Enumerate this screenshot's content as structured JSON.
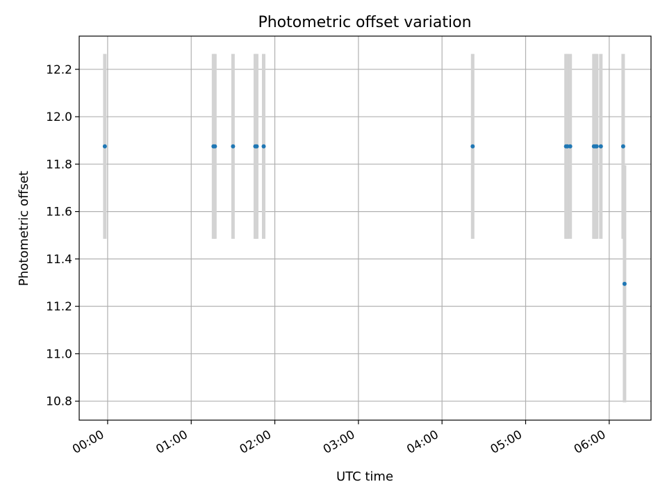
{
  "chart_data": {
    "type": "scatter",
    "title": "Photometric offset variation",
    "xlabel": "UTC time",
    "ylabel": "Photometric offset",
    "x_tick_labels": [
      "00:00",
      "01:00",
      "02:00",
      "03:00",
      "04:00",
      "05:00",
      "06:00"
    ],
    "x_ticks_hours": [
      0,
      1,
      2,
      3,
      4,
      5,
      6
    ],
    "xlim_hours": [
      -0.34,
      6.5
    ],
    "y_tick_labels": [
      "10.8",
      "11.0",
      "11.2",
      "11.4",
      "11.6",
      "11.8",
      "12.0",
      "12.2"
    ],
    "y_ticks": [
      10.8,
      11.0,
      11.2,
      11.4,
      11.6,
      11.8,
      12.0,
      12.2
    ],
    "ylim": [
      10.72,
      12.34
    ],
    "grid": true,
    "point_color": "#1f77b4",
    "errorbar_color": "#d3d3d3",
    "points": [
      {
        "time": "23:58",
        "y": 11.875,
        "err": 0.39
      },
      {
        "time": "01:16",
        "y": 11.875,
        "err": 0.39
      },
      {
        "time": "01:17",
        "y": 11.875,
        "err": 0.39
      },
      {
        "time": "01:30",
        "y": 11.875,
        "err": 0.39
      },
      {
        "time": "01:46",
        "y": 11.875,
        "err": 0.39
      },
      {
        "time": "01:47",
        "y": 11.875,
        "err": 0.39
      },
      {
        "time": "01:52",
        "y": 11.875,
        "err": 0.39
      },
      {
        "time": "04:22",
        "y": 11.875,
        "err": 0.39
      },
      {
        "time": "05:29",
        "y": 11.875,
        "err": 0.39
      },
      {
        "time": "05:30",
        "y": 11.875,
        "err": 0.39
      },
      {
        "time": "05:32",
        "y": 11.875,
        "err": 0.39
      },
      {
        "time": "05:49",
        "y": 11.875,
        "err": 0.39
      },
      {
        "time": "05:50",
        "y": 11.875,
        "err": 0.39
      },
      {
        "time": "05:51",
        "y": 11.875,
        "err": 0.39
      },
      {
        "time": "05:54",
        "y": 11.875,
        "err": 0.39
      },
      {
        "time": "06:10",
        "y": 11.875,
        "err": 0.39
      },
      {
        "time": "06:11",
        "y": 11.295,
        "err": 0.5
      }
    ]
  }
}
